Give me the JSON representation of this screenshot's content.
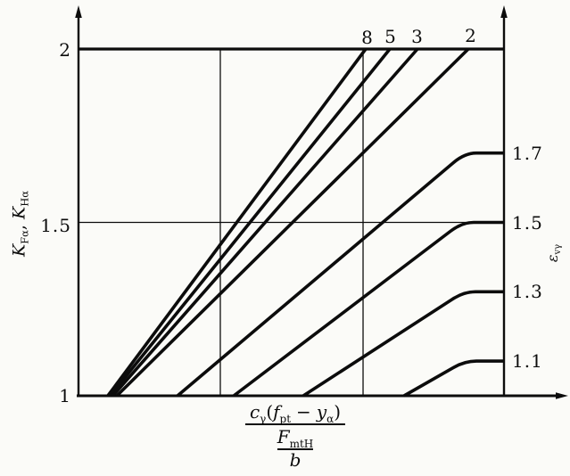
{
  "colors": {
    "ink": "#0c0c0c",
    "background": "#fbfbf8"
  },
  "left_axis": {
    "title": {
      "K1": "K",
      "K1sub": "Fα",
      "comma": ", ",
      "K2": "K",
      "K2sub": "Hα"
    },
    "ticks": [
      {
        "label": "2",
        "K": 2
      },
      {
        "label": "1.5",
        "K": 1.5
      },
      {
        "label": "1",
        "K": 1
      }
    ]
  },
  "right_axis": {
    "title": {
      "base": "ε",
      "sub": "vγ"
    },
    "curve_labels": [
      {
        "label": "1.7",
        "K": 1.7
      },
      {
        "label": "1.5",
        "K": 1.5
      },
      {
        "label": "1.3",
        "K": 1.3
      },
      {
        "label": "1.1",
        "K": 1.1
      }
    ]
  },
  "top_curve_labels": [
    {
      "label": "8",
      "x": 0.678
    },
    {
      "label": "5",
      "x": 0.733
    },
    {
      "label": "3",
      "x": 0.797
    },
    {
      "label": "2",
      "x": 0.922
    }
  ],
  "x_axis_label": {
    "num": {
      "c": "c",
      "c_sub": "γ",
      "open": "(",
      "f": "f",
      "f_sub": "pt",
      "minus": "−",
      "y": "y",
      "y_sub": "α",
      "close": ")"
    },
    "den_num": {
      "F": "F",
      "F_sub": "mtH"
    },
    "den_den": "b"
  },
  "chart_data": {
    "type": "line",
    "title": "",
    "ylabel_left": "K_Fα , K_Hα",
    "ylabel_right": "ε_vγ",
    "xlabel": "c_γ(f_pt − y_α) / (F_mtH / b)",
    "y_axis": {
      "min": 1,
      "max": 2,
      "tick_values": [
        2,
        1.5,
        1
      ],
      "gridline_K": 1.5
    },
    "x_axis": {
      "numeric_ticks": false,
      "normalized_0_to_1": true,
      "gridlines_x": [
        0.3333,
        0.6688
      ]
    },
    "legend_position": "labels-on-curves",
    "series": [
      {
        "name": "8",
        "label_position": "top",
        "points": [
          [
            0.069,
            1
          ],
          [
            0.675,
            2
          ]
        ]
      },
      {
        "name": "5",
        "label_position": "top",
        "points": [
          [
            0.0744,
            1
          ],
          [
            0.7317,
            2
          ]
        ]
      },
      {
        "name": "3",
        "label_position": "top",
        "points": [
          [
            0.0807,
            1
          ],
          [
            0.7966,
            2
          ]
        ]
      },
      {
        "name": "2",
        "label_position": "top",
        "points": [
          [
            0.0901,
            1
          ],
          [
            0.9161,
            2
          ]
        ]
      },
      {
        "name": "1.7",
        "label_position": "right",
        "points": [
          [
            0.2327,
            1
          ],
          [
            0.9078,
            1.7
          ],
          [
            1,
            1.7
          ]
        ]
      },
      {
        "name": "1.5",
        "label_position": "right",
        "points": [
          [
            0.3648,
            1
          ],
          [
            0.9015,
            1.5
          ],
          [
            1,
            1.5
          ]
        ]
      },
      {
        "name": "1.3",
        "label_position": "right",
        "points": [
          [
            0.5283,
            1
          ],
          [
            0.9057,
            1.3
          ],
          [
            1,
            1.3
          ]
        ]
      },
      {
        "name": "1.1",
        "label_position": "right",
        "points": [
          [
            0.7652,
            1
          ],
          [
            0.9078,
            1.1
          ],
          [
            1,
            1.1
          ]
        ]
      }
    ]
  }
}
